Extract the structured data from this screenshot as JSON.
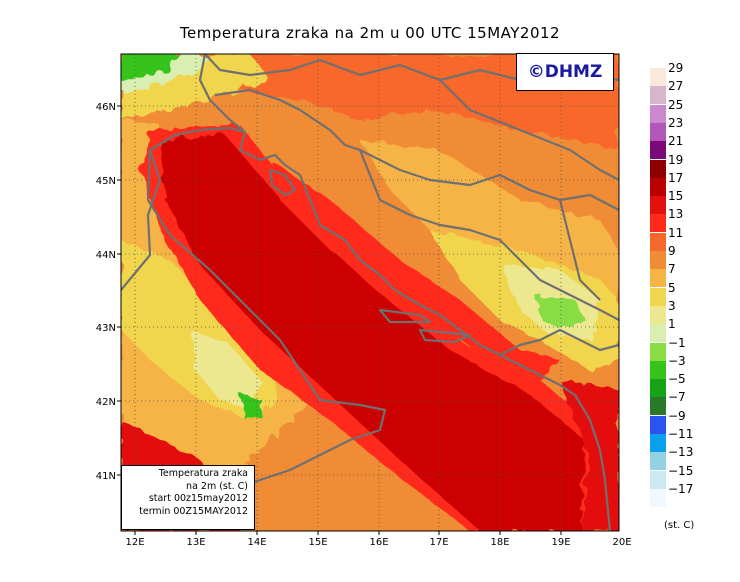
{
  "title": "Temperatura zraka na 2m u 00 UTC 15MAY2012",
  "credit": "©DHMZ",
  "info": {
    "line1": "Temperatura zraka",
    "line2": "na 2m (st. C)",
    "line3": "start 00z15may2012",
    "line4": "termin 00Z15MAY2012"
  },
  "lon_labels": [
    "12E",
    "13E",
    "14E",
    "15E",
    "16E",
    "17E",
    "18E",
    "19E",
    "20E"
  ],
  "lat_labels": [
    "46N",
    "45N",
    "44N",
    "43N",
    "42N",
    "41N"
  ],
  "legend": {
    "units": "(st. C)",
    "levels": [
      "29",
      "27",
      "25",
      "23",
      "21",
      "19",
      "17",
      "15",
      "13",
      "11",
      "9",
      "7",
      "5",
      "3",
      "1",
      "−1",
      "−3",
      "−5",
      "−7",
      "−9",
      "−11",
      "−13",
      "−15",
      "−17"
    ],
    "colors": [
      "#fbe8dc",
      "#d9b4cf",
      "#cc88cc",
      "#b158b8",
      "#7a0a7a",
      "#8e0000",
      "#bb0000",
      "#e41010",
      "#ff2a1a",
      "#f7682c",
      "#ef8c35",
      "#f5b444",
      "#f1d64d",
      "#ede890",
      "#d9efb1",
      "#88dd44",
      "#35c31c",
      "#16a416",
      "#287a28",
      "#2c52ef",
      "#0aa0ee",
      "#93d1e3",
      "#cde9ef",
      "#eefaff"
    ]
  },
  "colors": {
    "sea": "#cc0000",
    "coast": "#707070",
    "gridline": "#555555"
  }
}
